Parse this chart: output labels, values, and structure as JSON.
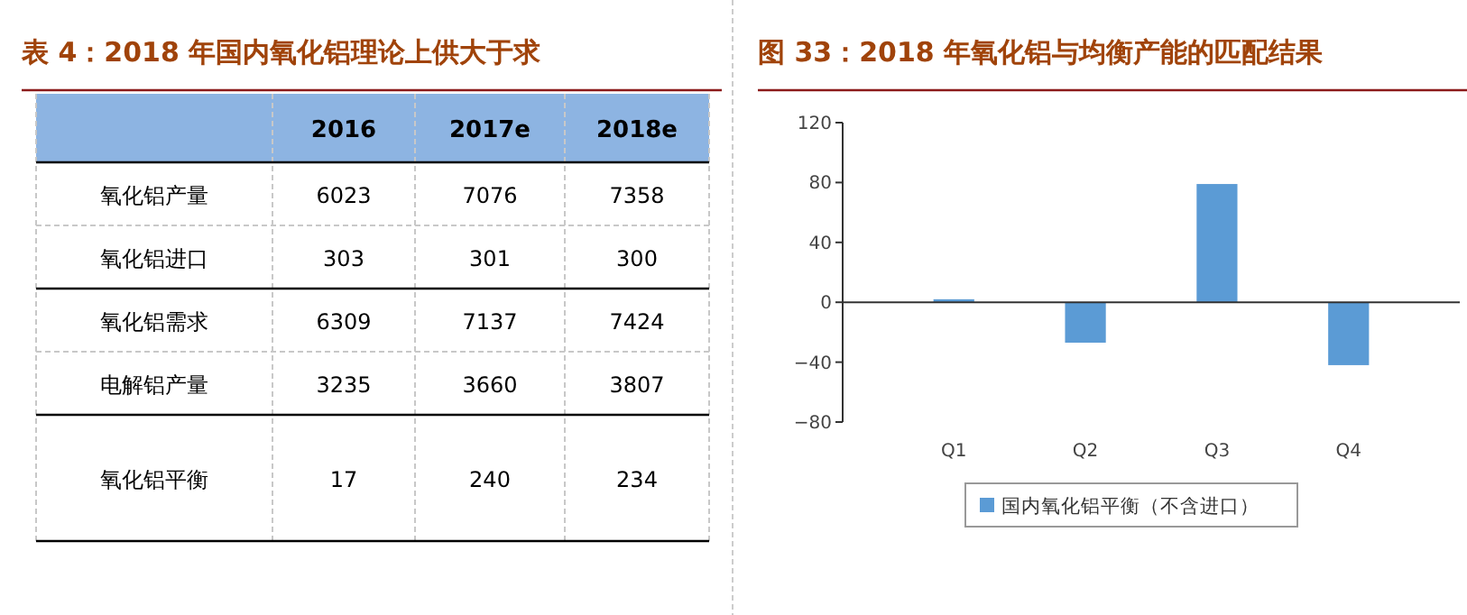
{
  "chart_data": [
    {
      "type": "heatmap",
      "data_labels": true,
      "title": "表 4：2018 年国内氧化铝理论上供大于求",
      "categories": [
        "2016",
        "2017e",
        "2018e"
      ],
      "y_categories": [
        "氧化铝产量",
        "氧化铝进口",
        "氧化铝需求",
        "电解铝产量",
        "氧化铝平衡"
      ],
      "cells": [
        [
          6023,
          7076,
          7358
        ],
        [
          303,
          301,
          300
        ],
        [
          6309,
          7137,
          7424
        ],
        [
          3235,
          3660,
          3807
        ],
        [
          17,
          240,
          234
        ]
      ]
    },
    {
      "type": "bar",
      "title": "图 33：2018 年氧化铝与均衡产能的匹配结果",
      "categories": [
        "Q1",
        "Q2",
        "Q3",
        "Q4"
      ],
      "series": [
        {
          "name": "国内氧化铝平衡（不含进口）",
          "color": "#5b9bd5",
          "values": [
            2,
            -27,
            79,
            -42
          ]
        }
      ],
      "ylim": [
        -80,
        120
      ],
      "yticks": [
        -80,
        -40,
        0,
        40,
        80,
        120
      ],
      "legend": "bottom"
    }
  ]
}
